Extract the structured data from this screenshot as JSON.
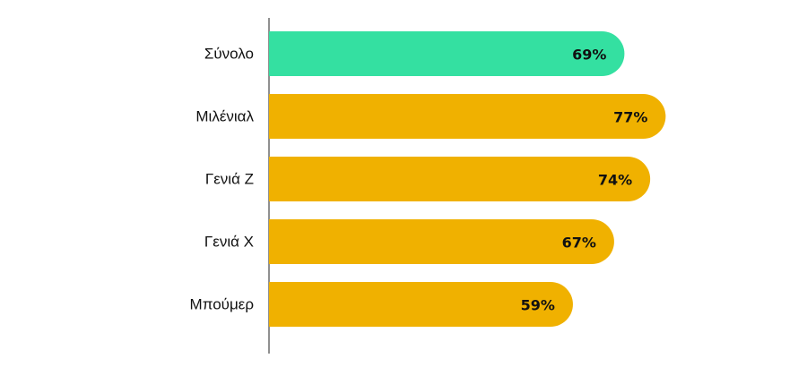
{
  "chart_data": {
    "type": "bar",
    "orientation": "horizontal",
    "categories": [
      "Σύνολο",
      "Μιλένιαλ",
      "Γενιά Ζ",
      "Γενιά Χ",
      "Μπούμερ"
    ],
    "values": [
      69,
      77,
      74,
      67,
      59
    ],
    "value_labels": [
      "69%",
      "77%",
      "74%",
      "67%",
      "59%"
    ],
    "unit": "%",
    "xlim": [
      0,
      100
    ],
    "grid": false,
    "legend": "none",
    "colors": {
      "highlight": "#34e0a1",
      "default": "#f0b100",
      "axis": "#222222"
    },
    "highlight_index": 0
  }
}
